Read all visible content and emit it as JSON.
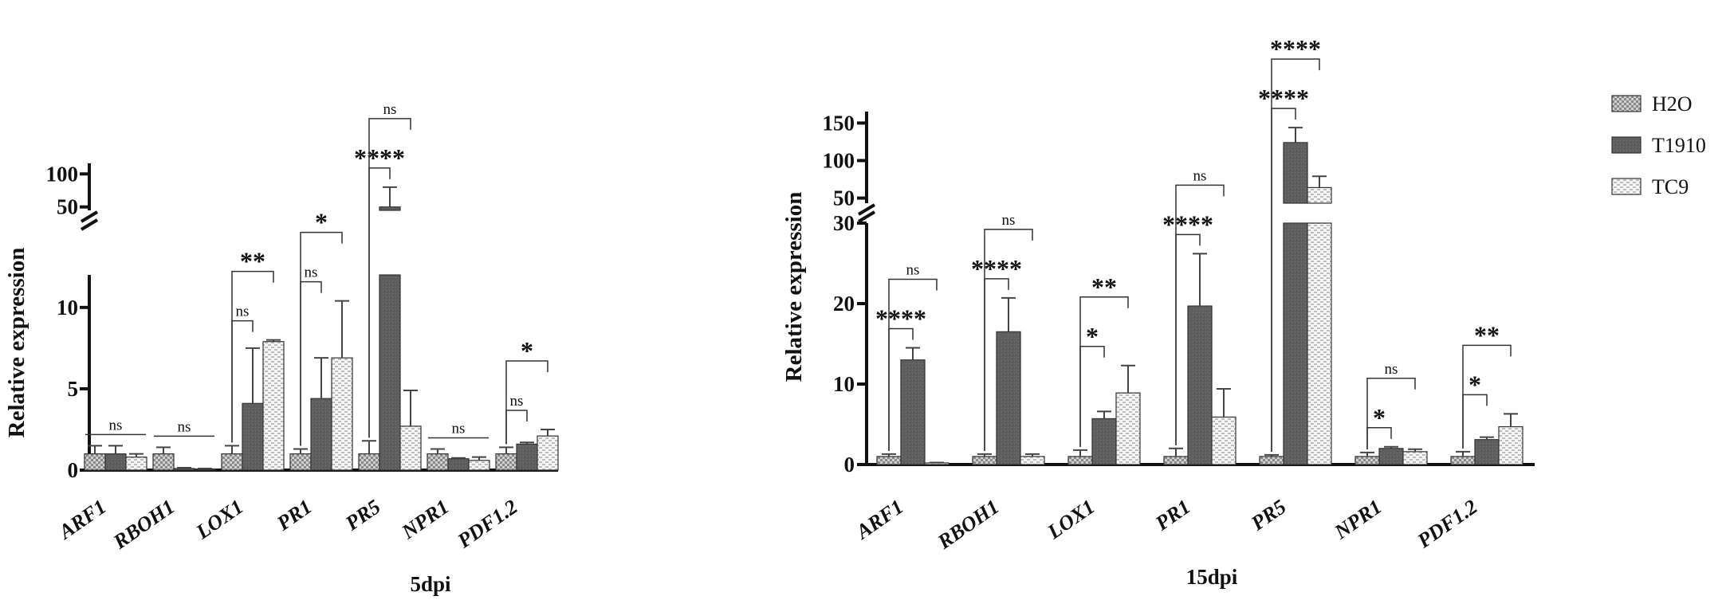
{
  "legend": [
    "H2O",
    "T1910",
    "TC9"
  ],
  "colors": {
    "H2O": "#d4d4d4",
    "T1910": "#606060",
    "TC9": "#f2f2f2",
    "axis": "#111111"
  },
  "ylabel": "Relative expression",
  "chart_data": [
    {
      "type": "bar",
      "title": "5dpi",
      "xlabel": "5dpi",
      "ylabel": "Relative expression",
      "categories": [
        "ARF1",
        "RBOH1",
        "LOX1",
        "PR1",
        "PR5",
        "NPR1",
        "PDF1.2"
      ],
      "y_axis_break": true,
      "ylim_lower": [
        0,
        12
      ],
      "ylim_upper": [
        40,
        110
      ],
      "yticks_lower": [
        "0",
        "5",
        "10"
      ],
      "yticks_upper": [
        "50",
        "100"
      ],
      "series": [
        {
          "name": "H2O",
          "values": [
            1.0,
            1.0,
            1.0,
            1.0,
            1.0,
            1.0,
            1.0
          ],
          "errors": [
            0.5,
            0.4,
            0.5,
            0.3,
            0.8,
            0.3,
            0.4
          ]
        },
        {
          "name": "T1910",
          "values": [
            1.0,
            0.1,
            4.1,
            4.4,
            50,
            0.7,
            1.6
          ],
          "errors": [
            0.5,
            0.05,
            3.4,
            2.5,
            30,
            0.05,
            0.1
          ]
        },
        {
          "name": "TC9",
          "values": [
            0.8,
            0.05,
            7.9,
            6.9,
            2.7,
            0.6,
            2.1
          ],
          "errors": [
            0.2,
            0.05,
            0.1,
            3.5,
            2.2,
            0.2,
            0.4
          ]
        }
      ],
      "annotations": [
        {
          "category": "ARF1",
          "text": "ns"
        },
        {
          "category": "RBOH1",
          "text": "ns"
        },
        {
          "category": "LOX1",
          "pair": "H2O-T1910",
          "text": "ns"
        },
        {
          "category": "LOX1",
          "pair": "H2O-TC9",
          "text": "**"
        },
        {
          "category": "PR1",
          "pair": "H2O-T1910",
          "text": "ns"
        },
        {
          "category": "PR1",
          "pair": "H2O-TC9",
          "text": "*"
        },
        {
          "category": "PR5",
          "pair": "H2O-T1910",
          "text": "****"
        },
        {
          "category": "PR5",
          "pair": "H2O-TC9",
          "text": "ns"
        },
        {
          "category": "NPR1",
          "text": "ns"
        },
        {
          "category": "PDF1.2",
          "pair": "H2O-T1910",
          "text": "ns"
        },
        {
          "category": "PDF1.2",
          "pair": "H2O-TC9",
          "text": "*"
        }
      ]
    },
    {
      "type": "bar",
      "title": "15dpi",
      "xlabel": "15dpi",
      "ylabel": "Relative expression",
      "categories": [
        "ARF1",
        "RBOH1",
        "LOX1",
        "PR1",
        "PR5",
        "NPR1",
        "PDF1.2"
      ],
      "y_axis_break": true,
      "ylim_lower": [
        0,
        30
      ],
      "ylim_upper": [
        40,
        160
      ],
      "yticks_lower": [
        "0",
        "10",
        "20",
        "30"
      ],
      "yticks_upper": [
        "50",
        "100",
        "150"
      ],
      "series": [
        {
          "name": "H2O",
          "values": [
            1.0,
            1.0,
            1.0,
            1.0,
            1.0,
            1.0,
            1.0
          ],
          "errors": [
            0.3,
            0.3,
            0.8,
            1.0,
            0.2,
            0.5,
            0.6
          ]
        },
        {
          "name": "T1910",
          "values": [
            13.0,
            16.5,
            5.7,
            19.7,
            124,
            2.0,
            3.1
          ],
          "errors": [
            1.5,
            4.2,
            0.9,
            6.5,
            20,
            0.2,
            0.3
          ]
        },
        {
          "name": "TC9",
          "values": [
            0.2,
            1.0,
            8.9,
            5.9,
            64,
            1.6,
            4.7
          ],
          "errors": [
            0.05,
            0.3,
            3.4,
            3.5,
            15,
            0.3,
            1.6
          ]
        }
      ],
      "annotations": [
        {
          "category": "ARF1",
          "pair": "H2O-T1910",
          "text": "****"
        },
        {
          "category": "ARF1",
          "pair": "H2O-TC9",
          "text": "ns"
        },
        {
          "category": "RBOH1",
          "pair": "H2O-T1910",
          "text": "****"
        },
        {
          "category": "RBOH1",
          "pair": "H2O-TC9",
          "text": "ns"
        },
        {
          "category": "LOX1",
          "pair": "H2O-T1910",
          "text": "*"
        },
        {
          "category": "LOX1",
          "pair": "H2O-TC9",
          "text": "**"
        },
        {
          "category": "PR1",
          "pair": "H2O-T1910",
          "text": "****"
        },
        {
          "category": "PR1",
          "pair": "H2O-TC9",
          "text": "ns"
        },
        {
          "category": "PR5",
          "pair": "H2O-T1910",
          "text": "****"
        },
        {
          "category": "PR5",
          "pair": "H2O-TC9",
          "text": "****"
        },
        {
          "category": "NPR1",
          "pair": "H2O-T1910",
          "text": "*"
        },
        {
          "category": "NPR1",
          "pair": "H2O-TC9",
          "text": "ns"
        },
        {
          "category": "PDF1.2",
          "pair": "H2O-T1910",
          "text": "*"
        },
        {
          "category": "PDF1.2",
          "pair": "H2O-TC9",
          "text": "**"
        }
      ]
    }
  ]
}
